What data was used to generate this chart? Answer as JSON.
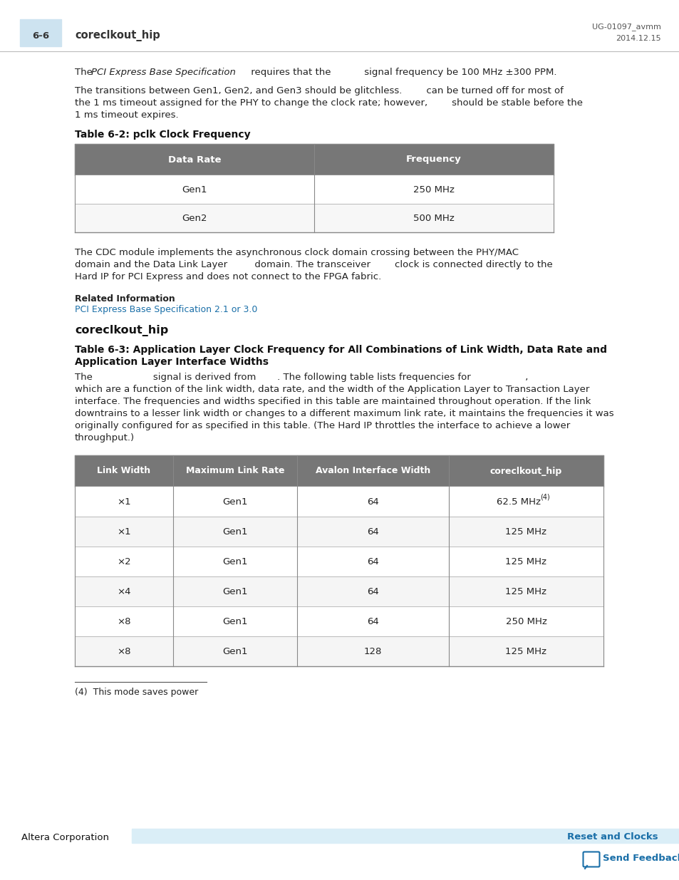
{
  "page_num": "6-6",
  "header_title": "coreclkout_hip",
  "header_right1": "UG-01097_avmm",
  "header_right2": "2014.12.15",
  "header_bg": "#cde3f0",
  "table1_title": "Table 6-2: pclk Clock Frequency",
  "table1_headers": [
    "Data Rate",
    "Frequency"
  ],
  "table1_rows": [
    [
      "Gen1",
      "250 MHz"
    ],
    [
      "Gen2",
      "500 MHz"
    ]
  ],
  "table1_header_bg": "#777777",
  "table1_header_fg": "#ffffff",
  "table1_border": "#888888",
  "related_info_label": "Related Information",
  "related_info_link": "PCI Express Base Specification 2.1 or 3.0",
  "related_info_link_color": "#1a6fa8",
  "section_title": "coreclkout_hip",
  "table2_title_line1": "Table 6-3: Application Layer Clock Frequency for All Combinations of Link Width, Data Rate and",
  "table2_title_line2": "Application Layer Interface Widths",
  "table2_headers": [
    "Link Width",
    "Maximum Link Rate",
    "Avalon Interface Width",
    "coreclkout_hip"
  ],
  "table2_rows": [
    [
      "×1",
      "Gen1",
      "64",
      "62.5 MHz²"
    ],
    [
      "×1",
      "Gen1",
      "64",
      "125 MHz"
    ],
    [
      "×2",
      "Gen1",
      "64",
      "125 MHz"
    ],
    [
      "×4",
      "Gen1",
      "64",
      "125 MHz"
    ],
    [
      "×8",
      "Gen1",
      "64",
      "250 MHz"
    ],
    [
      "×8",
      "Gen1",
      "128",
      "125 MHz"
    ]
  ],
  "table2_header_bg": "#777777",
  "table2_header_fg": "#ffffff",
  "table2_row_bg_alt": "#f5f5f5",
  "table2_border": "#999999",
  "footnote_line": "(4)  This mode saves power",
  "footer_left": "Altera Corporation",
  "footer_right": "Reset and Clocks",
  "footer_link_color": "#1a6fa8",
  "footer_band_color": "#daeef7",
  "send_feedback": "Send Feedback"
}
